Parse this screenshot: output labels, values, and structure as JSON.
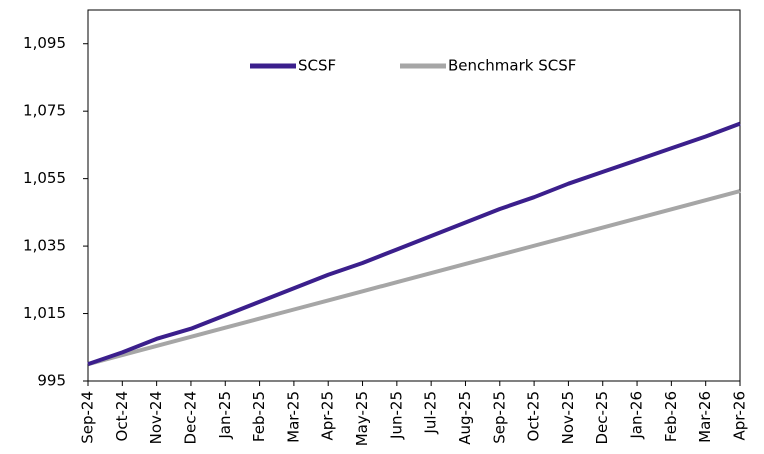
{
  "chart_data": {
    "type": "line",
    "categories": [
      "Sep-24",
      "Oct-24",
      "Nov-24",
      "Dec-24",
      "Jan-25",
      "Feb-25",
      "Mar-25",
      "Apr-25",
      "May-25",
      "Jun-25",
      "Jul-25",
      "Aug-25",
      "Sep-25",
      "Oct-25",
      "Nov-25",
      "Dec-25",
      "Jan-26",
      "Feb-26",
      "Mar-26",
      "Apr-26"
    ],
    "series": [
      {
        "name": "SCSF",
        "color": "#3b1f8c",
        "values": [
          1000,
          1003.5,
          1007.5,
          1010.5,
          1014.5,
          1018.5,
          1022.5,
          1026.5,
          1030,
          1034,
          1038,
          1042,
          1046,
          1049.5,
          1053.5,
          1057,
          1060.5,
          1064,
          1067.5,
          1071.3
        ]
      },
      {
        "name": "Benchmark SCSF",
        "color": "#a6a6a6",
        "values": [
          1000,
          1002.7,
          1005.4,
          1008.1,
          1010.8,
          1013.5,
          1016.2,
          1018.9,
          1021.6,
          1024.3,
          1027,
          1029.7,
          1032.4,
          1035.1,
          1037.8,
          1040.5,
          1043.2,
          1045.9,
          1048.6,
          1051.3
        ]
      }
    ],
    "ylim": [
      995,
      1105
    ],
    "yticks": [
      995,
      {
        "value": 1015,
        "label": "1,015"
      },
      {
        "value": 1035,
        "label": "1,035"
      },
      {
        "value": 1055,
        "label": "1,055"
      },
      {
        "value": 1075,
        "label": "1,075"
      },
      {
        "value": 1095,
        "label": "1,095"
      }
    ],
    "grid": false,
    "legend": "top"
  }
}
